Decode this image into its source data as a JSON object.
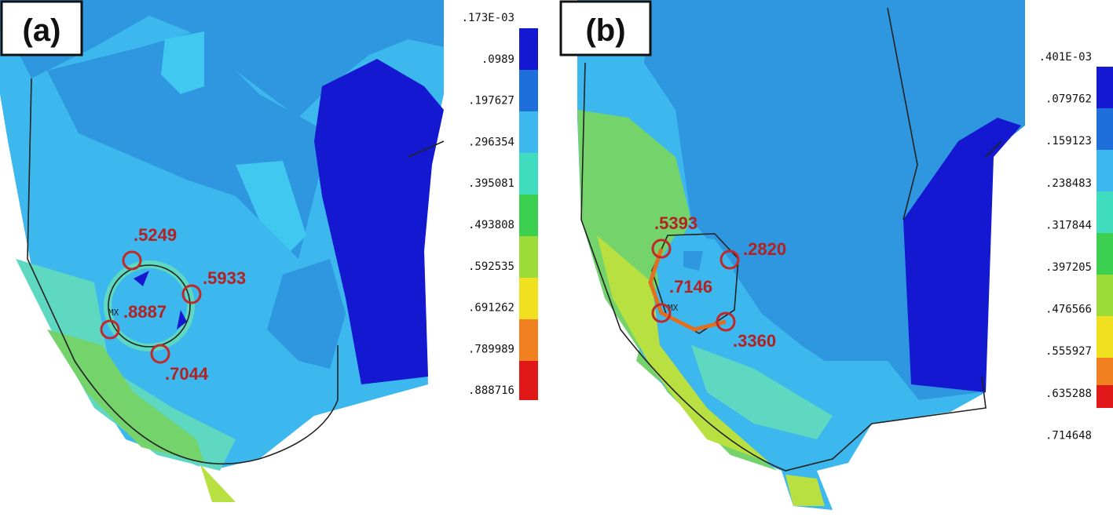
{
  "panels": [
    {
      "label": "(a)",
      "mx": "MX",
      "colorbar": [
        ".173E-03",
        ".0989",
        ".197627",
        ".296354",
        ".395081",
        ".493808",
        ".592535",
        ".691262",
        ".789989",
        ".888716"
      ],
      "annotations": [
        ".5249",
        ".5933",
        ".8887",
        ".7044"
      ]
    },
    {
      "label": "(b)",
      "mx": "MX",
      "colorbar": [
        ".401E-03",
        ".079762",
        ".159123",
        ".238483",
        ".317844",
        ".397205",
        ".476566",
        ".555927",
        ".635288",
        ".714648"
      ],
      "annotations": [
        ".5393",
        ".2820",
        ".7146",
        ".3360"
      ]
    }
  ]
}
